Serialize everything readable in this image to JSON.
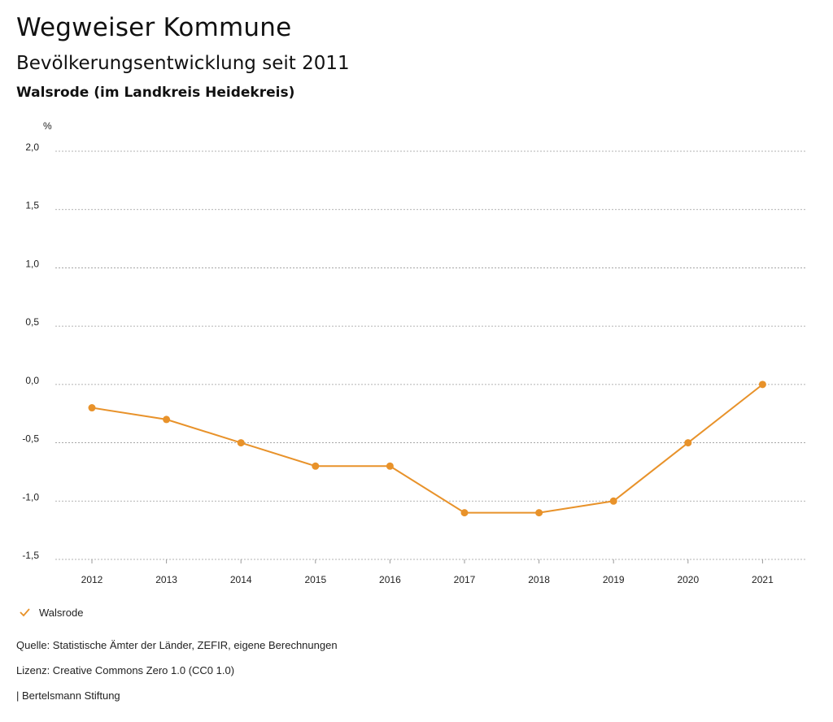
{
  "header": {
    "title": "Wegweiser Kommune",
    "subtitle": "Bevölkerungsentwicklung seit 2011",
    "region": "Walsrode (im Landkreis Heidekreis)"
  },
  "chart_data": {
    "type": "line",
    "title": "Bevölkerungsentwicklung seit 2011",
    "ylabel": "%",
    "xlabel": "",
    "ylim": [
      -1.5,
      2.0
    ],
    "yticks": [
      2.0,
      1.5,
      1.0,
      0.5,
      0.0,
      -0.5,
      -1.0,
      -1.5
    ],
    "ytick_labels": [
      "2,0",
      "1,5",
      "1,0",
      "0,5",
      "0,0",
      "-0,5",
      "-1,0",
      "-1,5"
    ],
    "grid": true,
    "legend_position": "bottom-left",
    "categories": [
      "2012",
      "2013",
      "2014",
      "2015",
      "2016",
      "2017",
      "2018",
      "2019",
      "2020",
      "2021"
    ],
    "series": [
      {
        "name": "Walsrode",
        "color": "#e8922a",
        "values": [
          -0.2,
          -0.3,
          -0.5,
          -0.7,
          -0.7,
          -1.1,
          -1.1,
          -1.0,
          -0.5,
          0.0
        ]
      }
    ]
  },
  "legend": {
    "label": "Walsrode",
    "icon": "check-icon"
  },
  "footer": {
    "source": "Quelle: Statistische Ämter der Länder, ZEFIR, eigene Berechnungen",
    "license": "Lizenz: Creative Commons Zero 1.0 (CC0 1.0)",
    "publisher": "| Bertelsmann Stiftung"
  }
}
